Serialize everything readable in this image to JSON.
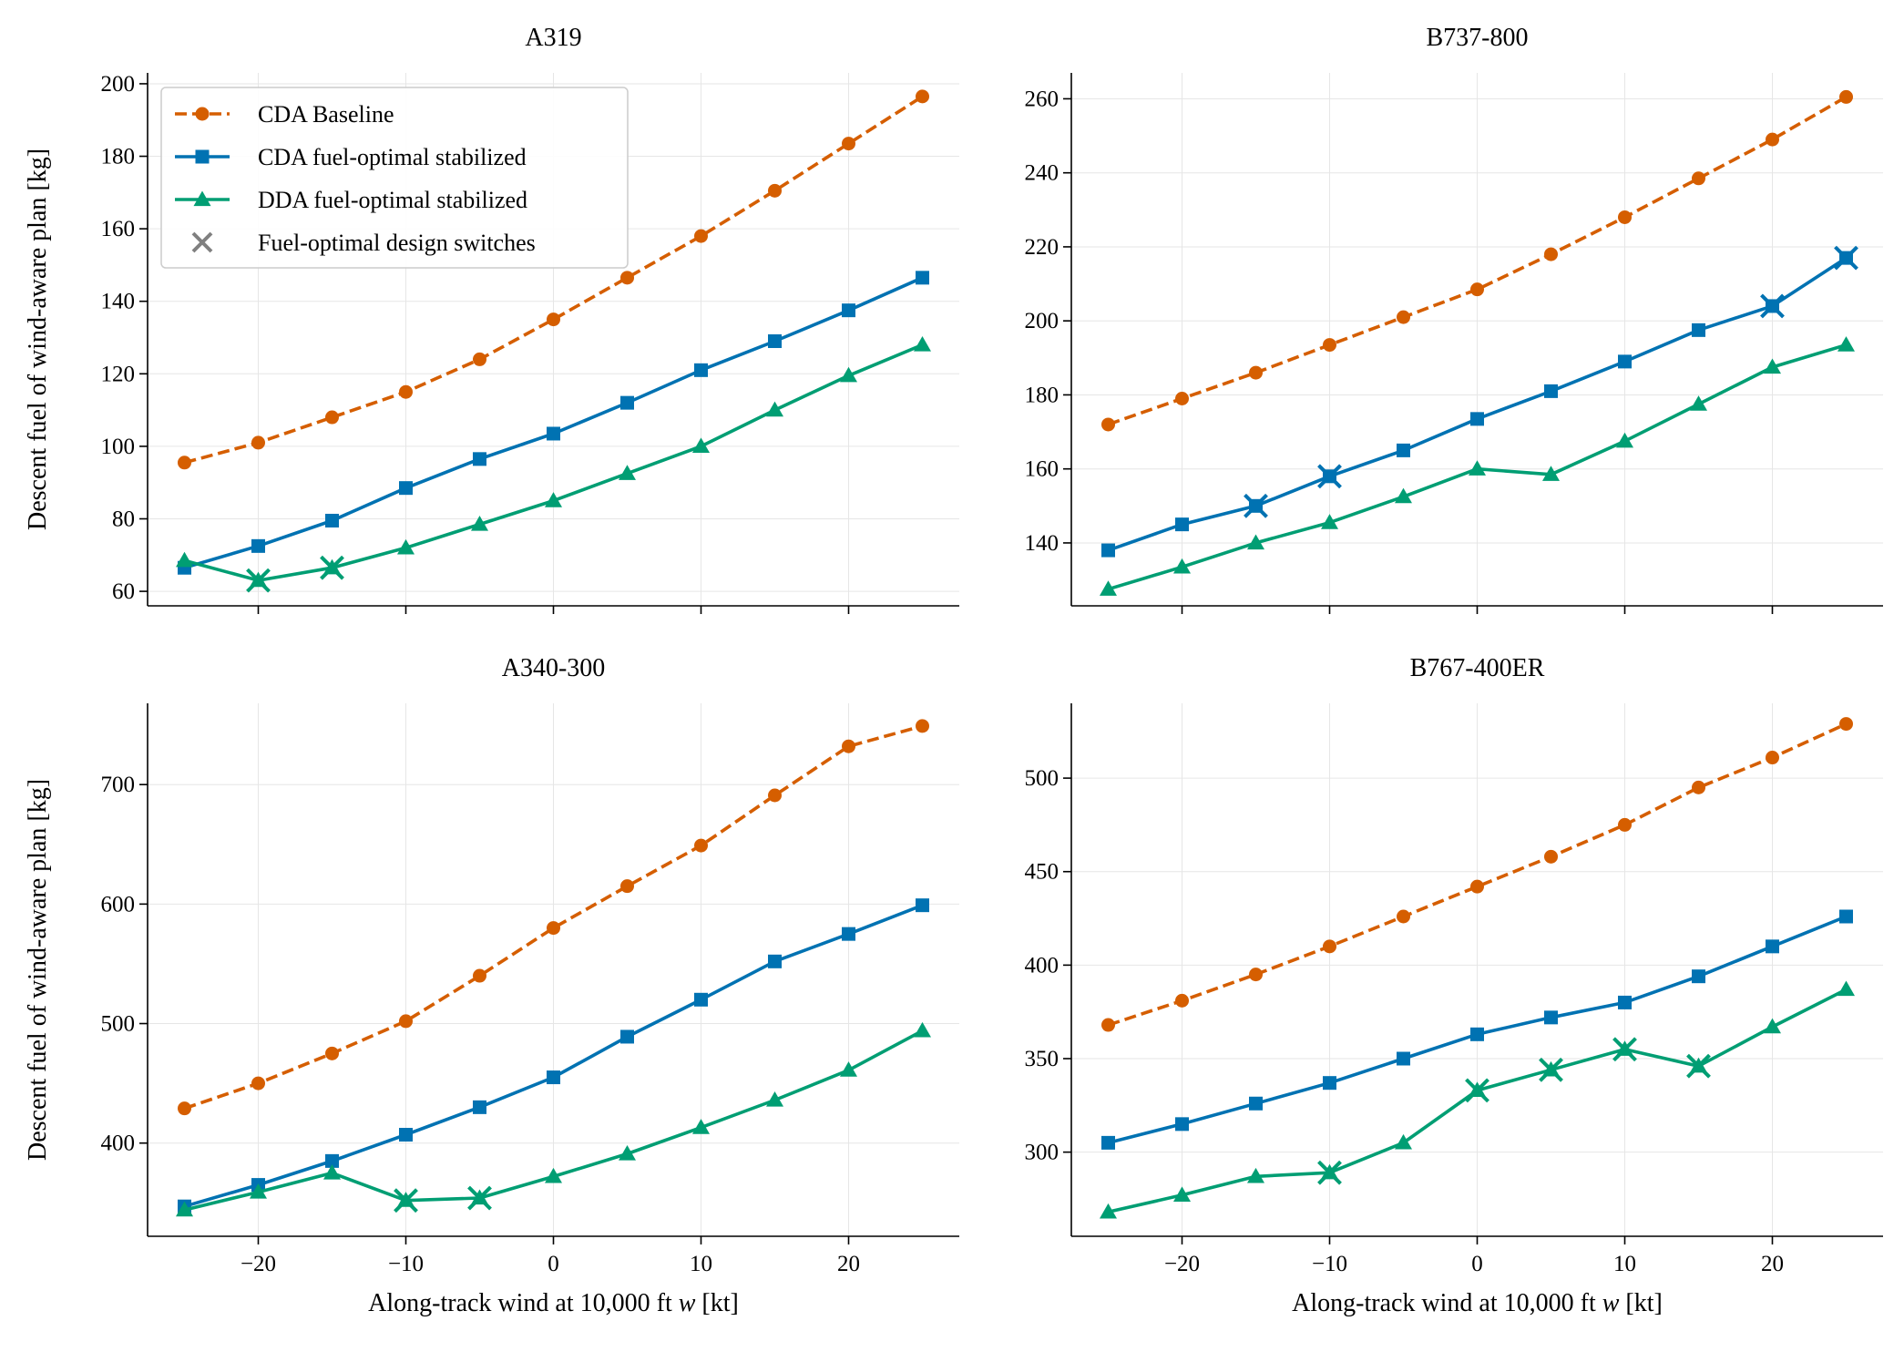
{
  "colors": {
    "cda_baseline": "#d55e00",
    "cda_fuel_optimal": "#0072b2",
    "dda_fuel_optimal": "#009e73",
    "switch_marker": "#808080",
    "grid": "#e6e6e6"
  },
  "x_axis_label": {
    "before": "Along-track wind at 10,000 ft ",
    "italic": "w",
    "after": " [kt]"
  },
  "y_axis_label": "Descent fuel of wind-aware plan [kg]",
  "legend": [
    {
      "series": "cda_baseline",
      "label": "CDA Baseline"
    },
    {
      "series": "cda_fuel_optimal",
      "label": "CDA fuel-optimal stabilized"
    },
    {
      "series": "dda_fuel_optimal",
      "label": "DDA fuel-optimal stabilized"
    },
    {
      "series": "switch",
      "label": "Fuel-optimal design switches"
    }
  ],
  "chart_data": [
    {
      "type": "line",
      "title": "A319",
      "x": [
        -25,
        -20,
        -15,
        -10,
        -5,
        0,
        5,
        10,
        15,
        20,
        25
      ],
      "xlim": [
        -27.5,
        27.5
      ],
      "xticks": [
        -20,
        -10,
        0,
        10,
        20
      ],
      "ylim": [
        56,
        203
      ],
      "yticks": [
        60,
        80,
        100,
        120,
        140,
        160,
        180,
        200
      ],
      "grid": true,
      "legend_position": "upper-left",
      "series": [
        {
          "key": "cda_baseline",
          "name": "CDA Baseline",
          "marker": "circle",
          "dashed": true,
          "values": [
            95.5,
            101,
            108,
            115,
            124,
            135,
            146.5,
            158,
            170.5,
            183.5,
            196.5
          ]
        },
        {
          "key": "cda_fuel_optimal",
          "name": "CDA fuel-optimal stabilized",
          "marker": "square",
          "dashed": false,
          "values": [
            66.5,
            72.5,
            79.5,
            88.5,
            96.5,
            103.5,
            112,
            121,
            129,
            137.5,
            146.5
          ]
        },
        {
          "key": "dda_fuel_optimal",
          "name": "DDA fuel-optimal stabilized",
          "marker": "triangle",
          "dashed": false,
          "values": [
            68.5,
            63,
            66.5,
            72,
            78.5,
            85,
            92.5,
            100,
            110,
            119.5,
            128
          ]
        }
      ],
      "switches": [
        {
          "series": "dda_fuel_optimal",
          "x": -20,
          "y": 63
        },
        {
          "series": "dda_fuel_optimal",
          "x": -15,
          "y": 66.5
        }
      ]
    },
    {
      "type": "line",
      "title": "B737-800",
      "x": [
        -25,
        -20,
        -15,
        -10,
        -5,
        0,
        5,
        10,
        15,
        20,
        25
      ],
      "xlim": [
        -27.5,
        27.5
      ],
      "xticks": [
        -20,
        -10,
        0,
        10,
        20
      ],
      "ylim": [
        123,
        267
      ],
      "yticks": [
        140,
        160,
        180,
        200,
        220,
        240,
        260
      ],
      "grid": true,
      "series": [
        {
          "key": "cda_baseline",
          "name": "CDA Baseline",
          "marker": "circle",
          "dashed": true,
          "values": [
            172,
            179,
            186,
            193.5,
            201,
            208.5,
            218,
            228,
            238.5,
            249,
            260.5
          ]
        },
        {
          "key": "cda_fuel_optimal",
          "name": "CDA fuel-optimal stabilized",
          "marker": "square",
          "dashed": false,
          "values": [
            138,
            145,
            150,
            158,
            165,
            173.5,
            181,
            189,
            197.5,
            204,
            217
          ]
        },
        {
          "key": "dda_fuel_optimal",
          "name": "DDA fuel-optimal stabilized",
          "marker": "triangle",
          "dashed": false,
          "values": [
            127.5,
            133.5,
            140,
            145.5,
            152.5,
            160,
            158.5,
            167.5,
            177.5,
            187.5,
            193.5
          ]
        }
      ],
      "switches": [
        {
          "series": "cda_fuel_optimal",
          "x": -15,
          "y": 150
        },
        {
          "series": "cda_fuel_optimal",
          "x": -10,
          "y": 158
        },
        {
          "series": "cda_fuel_optimal",
          "x": 20,
          "y": 204
        },
        {
          "series": "cda_fuel_optimal",
          "x": 25,
          "y": 217
        }
      ]
    },
    {
      "type": "line",
      "title": "A340-300",
      "x": [
        -25,
        -20,
        -15,
        -10,
        -5,
        0,
        5,
        10,
        15,
        20,
        25
      ],
      "xlim": [
        -27.5,
        27.5
      ],
      "xticks": [
        -20,
        -10,
        0,
        10,
        20
      ],
      "ylim": [
        322,
        768
      ],
      "yticks": [
        400,
        500,
        600,
        700
      ],
      "grid": true,
      "series": [
        {
          "key": "cda_baseline",
          "name": "CDA Baseline",
          "marker": "circle",
          "dashed": true,
          "values": [
            429,
            450,
            475,
            502,
            540,
            580,
            615,
            649,
            691,
            732,
            749
          ]
        },
        {
          "key": "cda_fuel_optimal",
          "name": "CDA fuel-optimal stabilized",
          "marker": "square",
          "dashed": false,
          "values": [
            347,
            365,
            385,
            407,
            430,
            455,
            489,
            520,
            552,
            575,
            599
          ]
        },
        {
          "key": "dda_fuel_optimal",
          "name": "DDA fuel-optimal stabilized",
          "marker": "triangle",
          "dashed": false,
          "values": [
            344,
            359,
            375,
            352,
            354,
            372,
            391,
            413,
            436,
            461,
            494
          ]
        }
      ],
      "switches": [
        {
          "series": "dda_fuel_optimal",
          "x": -10,
          "y": 352
        },
        {
          "series": "dda_fuel_optimal",
          "x": -5,
          "y": 354
        }
      ]
    },
    {
      "type": "line",
      "title": "B767-400ER",
      "x": [
        -25,
        -20,
        -15,
        -10,
        -5,
        0,
        5,
        10,
        15,
        20,
        25
      ],
      "xlim": [
        -27.5,
        27.5
      ],
      "xticks": [
        -20,
        -10,
        0,
        10,
        20
      ],
      "ylim": [
        255,
        540
      ],
      "yticks": [
        300,
        350,
        400,
        450,
        500
      ],
      "grid": true,
      "series": [
        {
          "key": "cda_baseline",
          "name": "CDA Baseline",
          "marker": "circle",
          "dashed": true,
          "values": [
            368,
            381,
            395,
            410,
            426,
            442,
            458,
            475,
            495,
            511,
            529
          ]
        },
        {
          "key": "cda_fuel_optimal",
          "name": "CDA fuel-optimal stabilized",
          "marker": "square",
          "dashed": false,
          "values": [
            305,
            315,
            326,
            337,
            350,
            363,
            372,
            380,
            394,
            410,
            426
          ]
        },
        {
          "key": "dda_fuel_optimal",
          "name": "DDA fuel-optimal stabilized",
          "marker": "triangle",
          "dashed": false,
          "values": [
            268,
            277,
            287,
            289,
            305,
            333,
            344,
            355,
            346,
            367,
            387
          ]
        }
      ],
      "switches": [
        {
          "series": "dda_fuel_optimal",
          "x": -10,
          "y": 289
        },
        {
          "series": "dda_fuel_optimal",
          "x": 0,
          "y": 333
        },
        {
          "series": "dda_fuel_optimal",
          "x": 5,
          "y": 344
        },
        {
          "series": "dda_fuel_optimal",
          "x": 10,
          "y": 355
        },
        {
          "series": "dda_fuel_optimal",
          "x": 15,
          "y": 346
        }
      ]
    }
  ]
}
